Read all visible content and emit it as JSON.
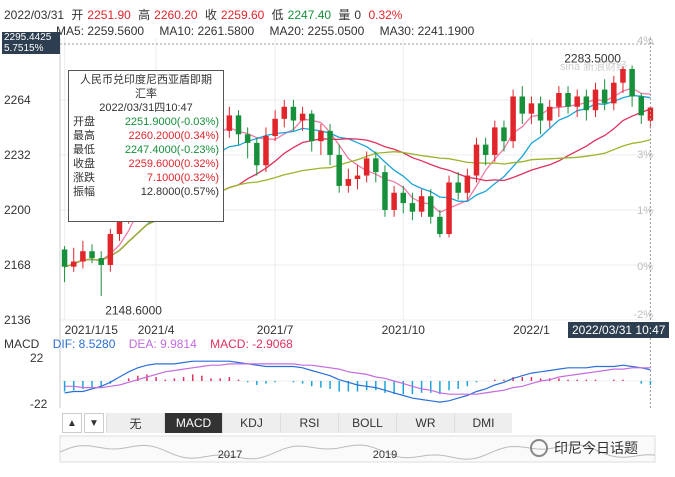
{
  "header": {
    "date": "2022/03/31",
    "open_label": "开",
    "open": "2251.90",
    "high_label": "高",
    "high": "2260.20",
    "close_label": "收",
    "close": "2259.60",
    "low_label": "低",
    "low": "2247.40",
    "vol_label": "量",
    "vol": "0",
    "change": "0.32%"
  },
  "ma_legend": [
    {
      "label": "MA5: 2259.5600",
      "color": "#f07aa6"
    },
    {
      "label": "MA10: 2261.5800",
      "color": "#1aa4d9"
    },
    {
      "label": "MA20: 2255.0500",
      "color": "#e0305f"
    },
    {
      "label": "MA30: 2241.1900",
      "color": "#99b52a"
    }
  ],
  "price_flag": {
    "price": "2295.4425",
    "pct": "5.7515%"
  },
  "y_ticks": [
    "2264",
    "2232",
    "2200",
    "2168",
    "2136"
  ],
  "right_pct_ticks": [
    "4%",
    "3%",
    "1%",
    "0%",
    "-2%"
  ],
  "x_ticks": [
    "2021/1/15",
    "2021/4",
    "2021/7",
    "2021/10",
    "2022/1"
  ],
  "date_flag": "2022/03/31 10:47",
  "max_label": "2283.5000",
  "min_label": "2148.6000",
  "source_mark": "sina 新浪财经",
  "tooltip": {
    "title_line1": "人民币兑印度尼西亚盾即期",
    "title_line2": "汇率",
    "datetime": "2022/03/31四10:47",
    "rows": [
      {
        "k": "开盘",
        "v": "2251.9000(-0.03%)",
        "dir": "down"
      },
      {
        "k": "最高",
        "v": "2260.2000(0.34%)",
        "dir": "up"
      },
      {
        "k": "最低",
        "v": "2247.4000(-0.23%)",
        "dir": "down"
      },
      {
        "k": "收盘",
        "v": "2259.6000(0.32%)",
        "dir": "up"
      },
      {
        "k": "涨跌",
        "v": "7.1000(0.32%)",
        "dir": "up"
      },
      {
        "k": "振幅",
        "v": "12.8000(0.57%)",
        "dir": "none"
      }
    ]
  },
  "macd": {
    "title": "MACD",
    "dif": "DIF: 8.5280",
    "dea": "DEA: 9.9814",
    "macd": "MACD: -2.9068",
    "y_ticks": [
      "22",
      "-22"
    ]
  },
  "tabs": [
    "无",
    "MACD",
    "KDJ",
    "RSI",
    "BOLL",
    "WR",
    "DMI"
  ],
  "active_tab": "MACD",
  "overview_years": [
    "2017",
    "2019"
  ],
  "watermark": "印尼今日话题",
  "colors": {
    "up": "#e0252b",
    "down": "#16903a",
    "ma5": "#f07aa6",
    "ma10": "#1aa4d9",
    "ma20": "#e0305f",
    "ma30": "#99b52a"
  },
  "chart_data": {
    "type": "candlestick",
    "title": "人民币兑印度尼西亚盾即期汇率",
    "ylim": [
      2136,
      2300
    ],
    "y_ticks": [
      2136,
      2168,
      2200,
      2232,
      2264
    ],
    "x_tick_labels": [
      "2021/1/15",
      "2021/4",
      "2021/7",
      "2021/10",
      "2022/1"
    ],
    "weeks": 65,
    "candles": [
      [
        2177,
        2167,
        2179,
        2158
      ],
      [
        2167,
        2170,
        2178,
        2164
      ],
      [
        2170,
        2176,
        2182,
        2166
      ],
      [
        2176,
        2172,
        2180,
        2169
      ],
      [
        2172,
        2168,
        2176,
        2150
      ],
      [
        2168,
        2186,
        2189,
        2164
      ],
      [
        2186,
        2196,
        2200,
        2182
      ],
      [
        2196,
        2218,
        2222,
        2192
      ],
      [
        2218,
        2226,
        2230,
        2214
      ],
      [
        2226,
        2236,
        2242,
        2222
      ],
      [
        2236,
        2216,
        2238,
        2210
      ],
      [
        2216,
        2210,
        2220,
        2203
      ],
      [
        2210,
        2225,
        2230,
        2206
      ],
      [
        2225,
        2242,
        2248,
        2220
      ],
      [
        2242,
        2254,
        2258,
        2236
      ],
      [
        2254,
        2246,
        2258,
        2240
      ],
      [
        2246,
        2238,
        2250,
        2232
      ],
      [
        2238,
        2246,
        2250,
        2233
      ],
      [
        2246,
        2255,
        2260,
        2242
      ],
      [
        2255,
        2244,
        2258,
        2238
      ],
      [
        2244,
        2239,
        2248,
        2230
      ],
      [
        2239,
        2226,
        2242,
        2220
      ],
      [
        2226,
        2243,
        2248,
        2222
      ],
      [
        2243,
        2253,
        2258,
        2240
      ],
      [
        2253,
        2260,
        2264,
        2248
      ],
      [
        2260,
        2252,
        2264,
        2246
      ],
      [
        2252,
        2256,
        2260,
        2246
      ],
      [
        2256,
        2240,
        2258,
        2234
      ],
      [
        2240,
        2246,
        2250,
        2232
      ],
      [
        2246,
        2232,
        2250,
        2226
      ],
      [
        2232,
        2214,
        2238,
        2210
      ],
      [
        2214,
        2218,
        2224,
        2210
      ],
      [
        2218,
        2220,
        2226,
        2212
      ],
      [
        2220,
        2230,
        2234,
        2216
      ],
      [
        2230,
        2222,
        2234,
        2216
      ],
      [
        2222,
        2200,
        2226,
        2196
      ],
      [
        2200,
        2210,
        2214,
        2196
      ],
      [
        2210,
        2204,
        2214,
        2198
      ],
      [
        2204,
        2199,
        2210,
        2194
      ],
      [
        2199,
        2208,
        2212,
        2196
      ],
      [
        2208,
        2196,
        2212,
        2192
      ],
      [
        2196,
        2186,
        2200,
        2184
      ],
      [
        2186,
        2216,
        2220,
        2184
      ],
      [
        2216,
        2210,
        2222,
        2206
      ],
      [
        2210,
        2220,
        2224,
        2206
      ],
      [
        2220,
        2238,
        2242,
        2216
      ],
      [
        2238,
        2232,
        2242,
        2226
      ],
      [
        2232,
        2248,
        2252,
        2228
      ],
      [
        2248,
        2240,
        2252,
        2234
      ],
      [
        2240,
        2266,
        2270,
        2236
      ],
      [
        2266,
        2256,
        2272,
        2250
      ],
      [
        2256,
        2262,
        2266,
        2250
      ],
      [
        2262,
        2252,
        2266,
        2244
      ],
      [
        2252,
        2260,
        2264,
        2248
      ],
      [
        2260,
        2268,
        2272,
        2254
      ],
      [
        2268,
        2260,
        2272,
        2256
      ],
      [
        2260,
        2266,
        2270,
        2254
      ],
      [
        2266,
        2258,
        2270,
        2252
      ],
      [
        2258,
        2270,
        2274,
        2254
      ],
      [
        2270,
        2262,
        2276,
        2258
      ],
      [
        2262,
        2274,
        2278,
        2258
      ],
      [
        2274,
        2282,
        2283.5,
        2268
      ],
      [
        2282,
        2266,
        2284,
        2260
      ],
      [
        2266,
        2255,
        2268,
        2250
      ],
      [
        2251.9,
        2259.6,
        2260.2,
        2247.4
      ]
    ],
    "macd_hist": [
      -8,
      -7,
      -6,
      -5,
      -4,
      -2,
      0,
      2,
      4,
      5,
      3,
      1,
      2,
      3,
      5,
      4,
      2,
      2,
      3,
      1,
      -1,
      -3,
      -2,
      -1,
      0,
      -1,
      -2,
      -4,
      -5,
      -6,
      -8,
      -8,
      -8,
      -7,
      -7,
      -9,
      -10,
      -10,
      -10,
      -9,
      -9,
      -10,
      -7,
      -6,
      -4,
      -1,
      0,
      1,
      1,
      3,
      3,
      3,
      2,
      2,
      2,
      1,
      1,
      1,
      1,
      0,
      1,
      1,
      0,
      -2,
      -3
    ],
    "dif": [
      -9,
      -8,
      -8,
      -6,
      -4,
      -1,
      3,
      7,
      10,
      12,
      13,
      13,
      13,
      14,
      15,
      15,
      15,
      15,
      15,
      14,
      13,
      12,
      11,
      11,
      11,
      11,
      10,
      8,
      6,
      4,
      1,
      -1,
      -3,
      -4,
      -5,
      -7,
      -9,
      -11,
      -13,
      -14,
      -15,
      -16,
      -15,
      -13,
      -11,
      -8,
      -6,
      -3,
      -1,
      2,
      4,
      6,
      7,
      8,
      9,
      10,
      10,
      10,
      11,
      11,
      11,
      12,
      11,
      10,
      8.5
    ],
    "dea": [
      -4,
      -4,
      -5,
      -5,
      -5,
      -4,
      -3,
      -1,
      1,
      3,
      5,
      7,
      8,
      9,
      10,
      11,
      12,
      12,
      13,
      13,
      13,
      13,
      13,
      13,
      13,
      13,
      12,
      12,
      11,
      10,
      9,
      7,
      6,
      5,
      3,
      2,
      0,
      -2,
      -4,
      -6,
      -7,
      -9,
      -10,
      -10,
      -10,
      -10,
      -9,
      -8,
      -7,
      -5,
      -4,
      -2,
      0,
      1,
      3,
      4,
      5,
      6,
      7,
      8,
      9,
      9,
      10,
      10,
      10
    ]
  }
}
